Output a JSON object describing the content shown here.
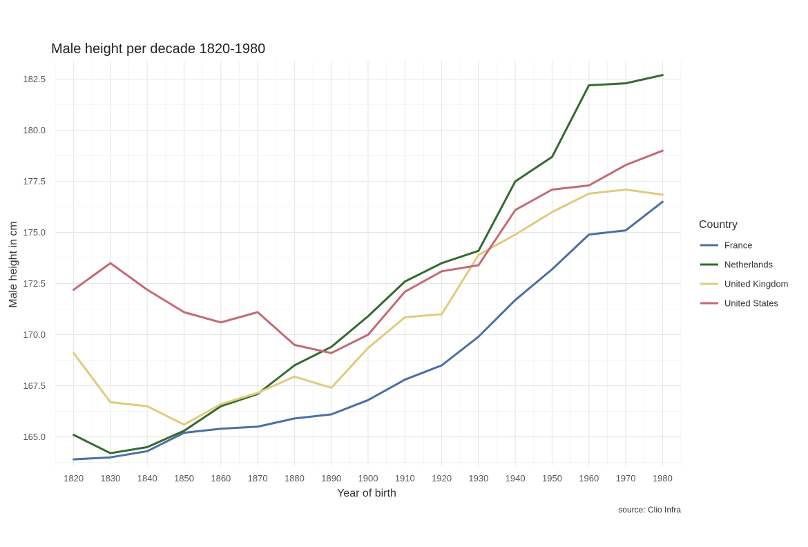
{
  "chart_data": {
    "type": "line",
    "title": "Male height per decade 1820-1980",
    "xlabel": "Year of birth",
    "ylabel": "Male height in cm",
    "caption": "source: Clio Infra",
    "legend_title": "Country",
    "legend_position": "right",
    "grid": true,
    "x": [
      1820,
      1830,
      1840,
      1850,
      1860,
      1870,
      1880,
      1890,
      1900,
      1910,
      1920,
      1930,
      1940,
      1950,
      1960,
      1970,
      1980
    ],
    "xlim": [
      1815,
      1985
    ],
    "ylim": [
      163.6,
      183.4
    ],
    "x_ticks": [
      "1820",
      "1830",
      "1840",
      "1850",
      "1860",
      "1870",
      "1880",
      "1890",
      "1900",
      "1910",
      "1920",
      "1930",
      "1940",
      "1950",
      "1960",
      "1970",
      "1980"
    ],
    "y_ticks": [
      "165.0",
      "167.5",
      "170.0",
      "172.5",
      "175.0",
      "177.5",
      "180.0",
      "182.5"
    ],
    "series": [
      {
        "name": "France",
        "color": "#4a6fa5",
        "values": [
          163.9,
          164.0,
          164.3,
          165.2,
          165.4,
          165.5,
          165.9,
          166.1,
          166.8,
          167.8,
          168.5,
          169.9,
          171.7,
          173.2,
          174.9,
          175.1,
          176.5
        ]
      },
      {
        "name": "Netherlands",
        "color": "#336b2e",
        "values": [
          165.1,
          164.2,
          164.5,
          165.3,
          166.5,
          167.1,
          168.5,
          169.4,
          170.9,
          172.6,
          173.5,
          174.1,
          177.5,
          178.7,
          182.2,
          182.3,
          182.7
        ]
      },
      {
        "name": "United Kingdom",
        "color": "#dfcb7d",
        "values": [
          169.1,
          166.7,
          166.5,
          165.6,
          166.6,
          167.15,
          167.95,
          167.4,
          169.35,
          170.85,
          171.0,
          173.9,
          174.9,
          176.0,
          176.9,
          177.1,
          176.85
        ]
      },
      {
        "name": "United States",
        "color": "#c46a73",
        "values": [
          172.2,
          173.5,
          172.2,
          171.1,
          170.6,
          171.1,
          169.5,
          169.1,
          170.0,
          172.1,
          173.1,
          173.4,
          176.1,
          177.1,
          177.3,
          178.3,
          179.0
        ]
      }
    ]
  }
}
